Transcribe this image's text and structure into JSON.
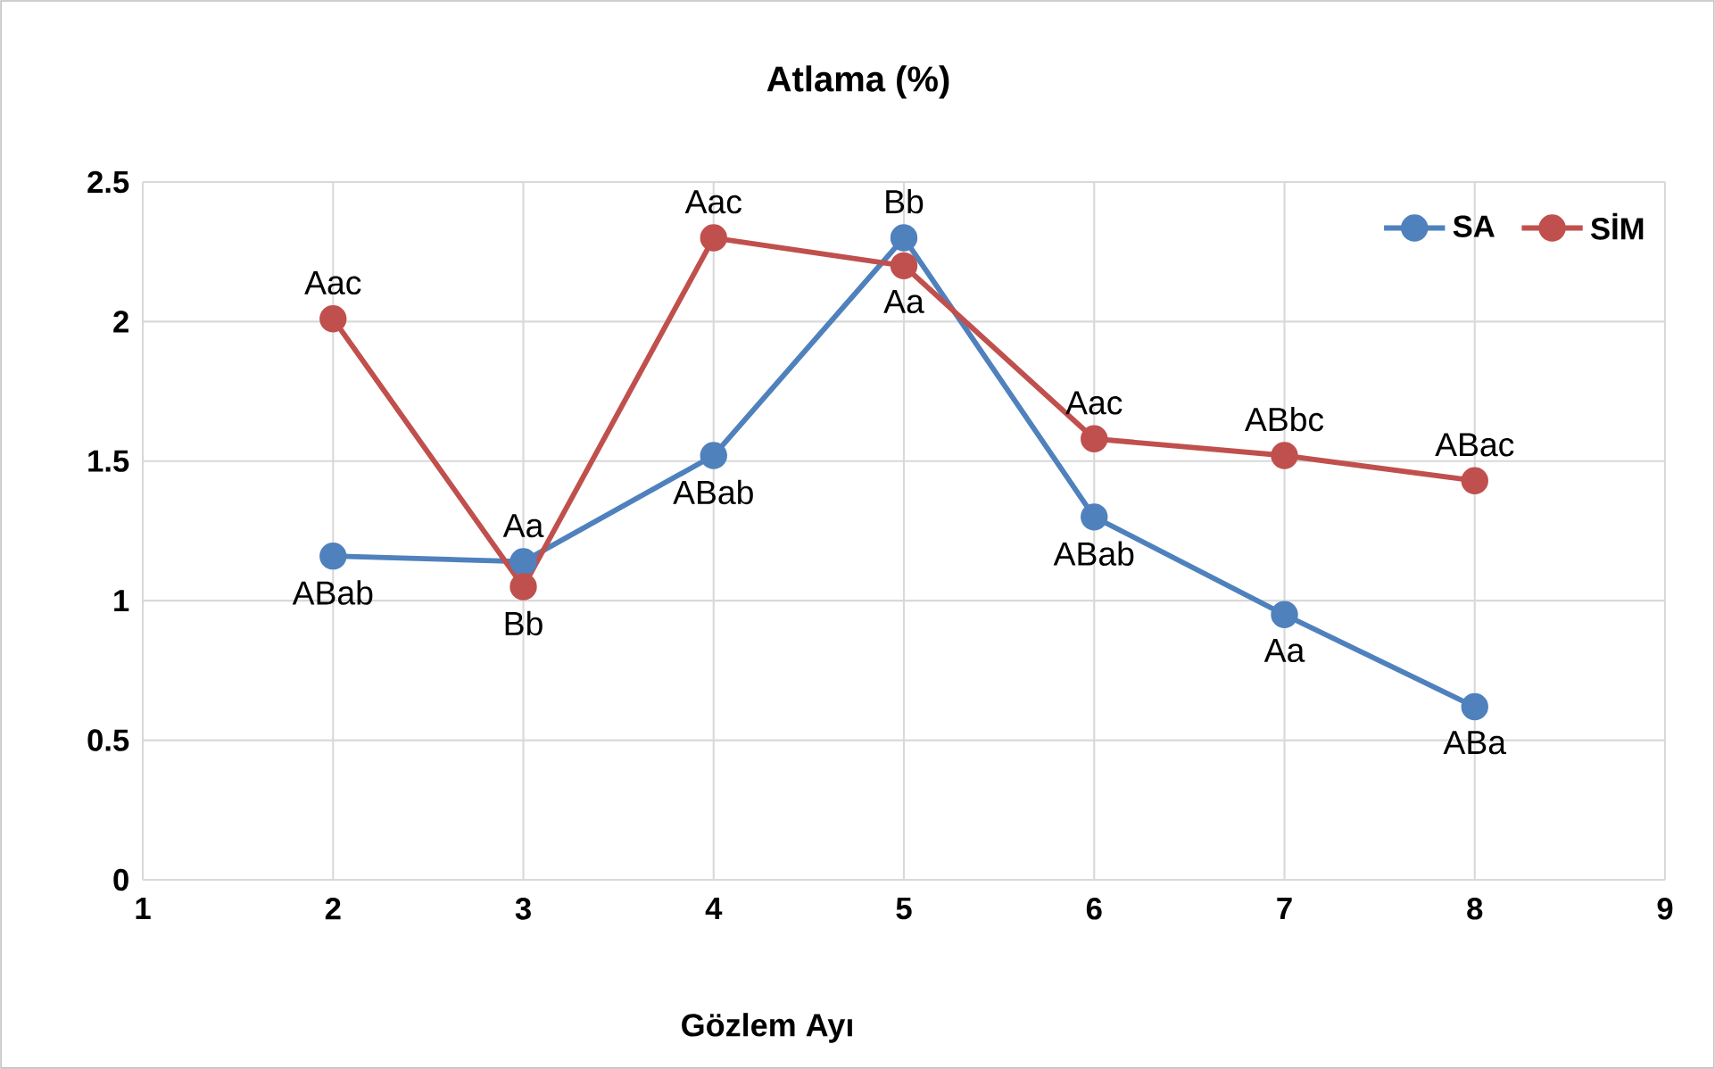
{
  "chart_data": {
    "type": "line",
    "title": "Atlama (%)",
    "xlabel": "Gözlem Ayı",
    "x": [
      2,
      3,
      4,
      5,
      6,
      7,
      8
    ],
    "series": [
      {
        "name": "SA",
        "color": "#4f81bd",
        "values": [
          1.16,
          1.14,
          1.52,
          2.3,
          1.3,
          0.95,
          0.62
        ]
      },
      {
        "name": "SİM",
        "color": "#c0504d",
        "values": [
          2.01,
          1.05,
          2.3,
          2.2,
          1.58,
          1.52,
          1.43
        ]
      }
    ],
    "xlim": [
      1,
      9
    ],
    "xticks": [
      1,
      2,
      3,
      4,
      5,
      6,
      7,
      8,
      9
    ],
    "ylim": [
      0,
      2.5
    ],
    "yticks": [
      0,
      0.5,
      1,
      1.5,
      2,
      2.5
    ],
    "grid": true,
    "legend": "top right",
    "marker": "circle",
    "line_style": "solid",
    "annotations": [
      {
        "text": "ABab",
        "x": 2,
        "y": 1.16
      },
      {
        "text": "Aa",
        "x": 3,
        "y": 1.14
      },
      {
        "text": "ABab",
        "x": 4,
        "y": 1.52
      },
      {
        "text": "Bb",
        "x": 5,
        "y": 2.3
      },
      {
        "text": "ABab",
        "x": 6,
        "y": 1.3
      },
      {
        "text": "Aa",
        "x": 7,
        "y": 0.95
      },
      {
        "text": "ABa",
        "x": 8,
        "y": 0.62
      },
      {
        "text": "Aac",
        "x": 2,
        "y": 2.01
      },
      {
        "text": "Bb",
        "x": 3,
        "y": 1.05
      },
      {
        "text": "Aac",
        "x": 4,
        "y": 2.3
      },
      {
        "text": "Aa",
        "x": 5,
        "y": 2.2
      },
      {
        "text": "Aac",
        "x": 6,
        "y": 1.58
      },
      {
        "text": "ABbc",
        "x": 7,
        "y": 1.52
      },
      {
        "text": "ABac",
        "x": 8,
        "y": 1.43
      }
    ]
  }
}
